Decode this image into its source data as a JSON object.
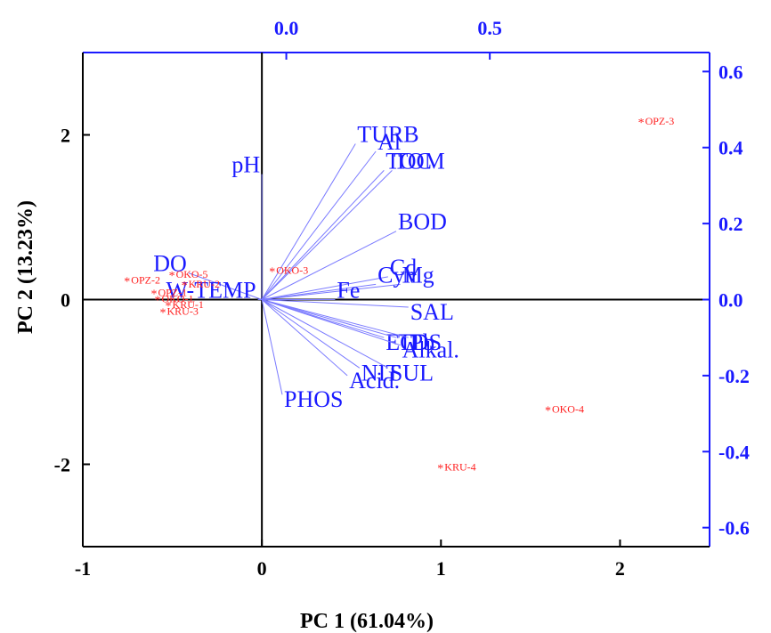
{
  "colors": {
    "axis": "#000000",
    "blue": "#1a1aff",
    "vector": "#7a7aff",
    "score": "#ff2020"
  },
  "chart_data": {
    "type": "scatter",
    "title": "",
    "xlabel": "PC 1 (61.04%)",
    "ylabel": "PC 2 (13.23%)",
    "xlim": [
      -1,
      2.5
    ],
    "ylim": [
      -3,
      3
    ],
    "x_ticks": [
      "-1",
      "0",
      "1",
      "2"
    ],
    "x_tick_values": [
      -1,
      0,
      1,
      2
    ],
    "y_ticks": [
      "-2",
      "0",
      "2"
    ],
    "y_tick_values": [
      -2,
      0,
      2
    ],
    "top_axis": {
      "ticks": [
        "0.0",
        "0.5"
      ],
      "values": [
        0.0,
        0.5
      ],
      "range": [
        -0.5,
        1.04
      ]
    },
    "right_axis": {
      "ticks": [
        "0.6",
        "0.4",
        "0.2",
        "0.0",
        "-0.2",
        "-0.4",
        "-0.6"
      ],
      "values": [
        0.6,
        0.4,
        0.2,
        0.0,
        -0.2,
        -0.4,
        -0.6
      ],
      "range": [
        -0.65,
        0.65
      ]
    },
    "grid": false,
    "scores": [
      {
        "label": "OPZ-3",
        "x": 2.12,
        "y": 2.18
      },
      {
        "label": "OKO-4",
        "x": 1.6,
        "y": -1.32
      },
      {
        "label": "KRU-4",
        "x": 1.0,
        "y": -2.02
      },
      {
        "label": "OKO-3",
        "x": 0.06,
        "y": 0.37
      },
      {
        "label": "OKO-5",
        "x": -0.5,
        "y": 0.32
      },
      {
        "label": "OPZ-2",
        "x": -0.75,
        "y": 0.25
      },
      {
        "label": "KRU-2",
        "x": -0.43,
        "y": 0.2
      },
      {
        "label": "OPZ-1",
        "x": -0.6,
        "y": 0.1
      },
      {
        "label": "OKO-1",
        "x": -0.58,
        "y": 0.02
      },
      {
        "label": "KRU-1",
        "x": -0.52,
        "y": -0.05
      },
      {
        "label": "KRU-3",
        "x": -0.55,
        "y": -0.13
      }
    ],
    "loadings": [
      {
        "label": "TURB",
        "x": 0.17,
        "y": 0.41
      },
      {
        "label": "Al",
        "x": 0.22,
        "y": 0.39
      },
      {
        "label": "TOC",
        "x": 0.24,
        "y": 0.34
      },
      {
        "label": "TOM",
        "x": 0.26,
        "y": 0.34
      },
      {
        "label": "pH",
        "x": -0.06,
        "y": 0.33
      },
      {
        "label": "BOD",
        "x": 0.27,
        "y": 0.18
      },
      {
        "label": "Cd",
        "x": 0.25,
        "y": 0.06
      },
      {
        "label": "Mg",
        "x": 0.28,
        "y": 0.04
      },
      {
        "label": "Cyn",
        "x": 0.22,
        "y": 0.04
      },
      {
        "label": "DO",
        "x": -0.24,
        "y": 0.07
      },
      {
        "label": "W-TEMP",
        "x": -0.07,
        "y": 0.0
      },
      {
        "label": "Fe",
        "x": 0.12,
        "y": 0.0
      },
      {
        "label": "SAL",
        "x": 0.3,
        "y": -0.02
      },
      {
        "label": "EC",
        "x": 0.24,
        "y": -0.1
      },
      {
        "label": "TDS",
        "x": 0.27,
        "y": -0.1
      },
      {
        "label": "Pb",
        "x": 0.3,
        "y": -0.1
      },
      {
        "label": "Alkal.",
        "x": 0.28,
        "y": -0.12
      },
      {
        "label": "NIT",
        "x": 0.18,
        "y": -0.18
      },
      {
        "label": "SUL",
        "x": 0.25,
        "y": -0.18
      },
      {
        "label": "Acid.",
        "x": 0.15,
        "y": -0.2
      },
      {
        "label": "PHOS",
        "x": -0.01,
        "y": -0.25
      }
    ]
  }
}
